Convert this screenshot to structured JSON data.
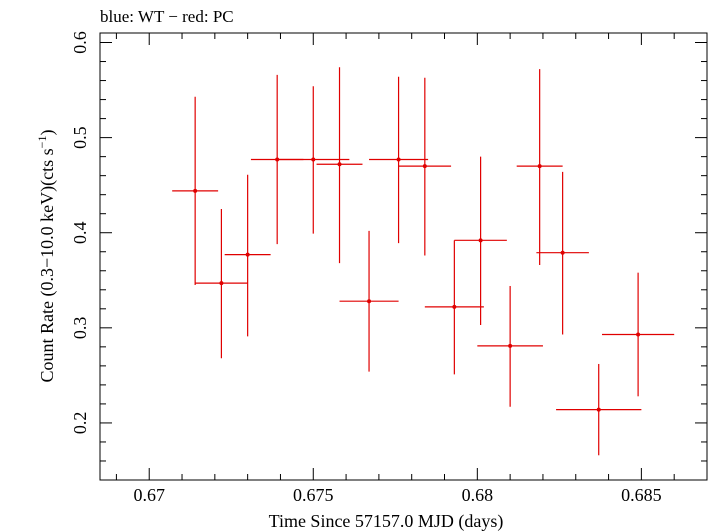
{
  "chart_data": {
    "type": "scatter",
    "title": "blue: WT − red: PC",
    "xlabel": "Time Since 57157.0 MJD (days)",
    "ylabel": "Count Rate (0.3−10.0 keV)(cts s",
    "ylabel_sup": "−1",
    "ylabel_end": ")",
    "xlim": [
      0.6685,
      0.687
    ],
    "ylim": [
      0.14,
      0.61
    ],
    "xticks": [
      0.67,
      0.675,
      0.68,
      0.685
    ],
    "xtick_labels": [
      "0.67",
      "0.675",
      "0.68",
      "0.685"
    ],
    "yticks": [
      0.2,
      0.3,
      0.4,
      0.5,
      0.6
    ],
    "ytick_labels": [
      "0.2",
      "0.3",
      "0.4",
      "0.5",
      "0.6"
    ],
    "grid": false,
    "series": [
      {
        "color": "#e00000",
        "points": [
          {
            "x": 0.6714,
            "xerr": 0.0007,
            "y": 0.444,
            "yerr_lo": 0.099,
            "yerr_hi": 0.099
          },
          {
            "x": 0.6722,
            "xerr": 0.0008,
            "y": 0.347,
            "yerr_lo": 0.079,
            "yerr_hi": 0.078
          },
          {
            "x": 0.673,
            "xerr": 0.0007,
            "y": 0.377,
            "yerr_lo": 0.086,
            "yerr_hi": 0.084
          },
          {
            "x": 0.6739,
            "xerr": 0.0008,
            "y": 0.477,
            "yerr_lo": 0.089,
            "yerr_hi": 0.089
          },
          {
            "x": 0.675,
            "xerr": 0.0011,
            "y": 0.477,
            "yerr_lo": 0.078,
            "yerr_hi": 0.077
          },
          {
            "x": 0.6758,
            "xerr": 0.0007,
            "y": 0.472,
            "yerr_lo": 0.104,
            "yerr_hi": 0.102
          },
          {
            "x": 0.6767,
            "xerr": 0.0009,
            "y": 0.328,
            "yerr_lo": 0.074,
            "yerr_hi": 0.074
          },
          {
            "x": 0.6776,
            "xerr": 0.0009,
            "y": 0.477,
            "yerr_lo": 0.088,
            "yerr_hi": 0.087
          },
          {
            "x": 0.6784,
            "xerr": 0.0008,
            "y": 0.47,
            "yerr_lo": 0.094,
            "yerr_hi": 0.093
          },
          {
            "x": 0.6793,
            "xerr": 0.0009,
            "y": 0.322,
            "yerr_lo": 0.071,
            "yerr_hi": 0.07
          },
          {
            "x": 0.6801,
            "xerr": 0.0008,
            "y": 0.392,
            "yerr_lo": 0.089,
            "yerr_hi": 0.088
          },
          {
            "x": 0.681,
            "xerr": 0.001,
            "y": 0.281,
            "yerr_lo": 0.064,
            "yerr_hi": 0.063
          },
          {
            "x": 0.6819,
            "xerr": 0.0007,
            "y": 0.47,
            "yerr_lo": 0.104,
            "yerr_hi": 0.102
          },
          {
            "x": 0.6826,
            "xerr": 0.0008,
            "y": 0.379,
            "yerr_lo": 0.086,
            "yerr_hi": 0.085
          },
          {
            "x": 0.6837,
            "xerr": 0.0013,
            "y": 0.214,
            "yerr_lo": 0.048,
            "yerr_hi": 0.048
          },
          {
            "x": 0.6849,
            "xerr": 0.0011,
            "y": 0.293,
            "yerr_lo": 0.065,
            "yerr_hi": 0.065
          }
        ]
      }
    ]
  }
}
